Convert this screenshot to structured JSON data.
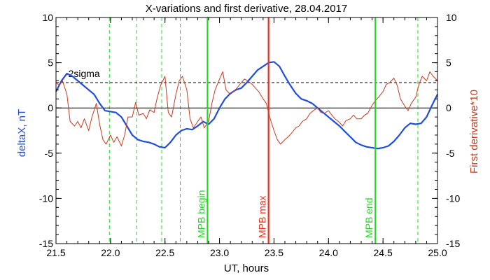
{
  "chart_data": {
    "type": "line",
    "title": "X-variations and first derivative, 28.04.2017",
    "xlabel": "UT, hours",
    "ylabel_left": "deltaX, nT",
    "ylabel_right": "First derivative*10",
    "xlim": [
      21.5,
      25.0
    ],
    "ylim_left": [
      -15,
      10
    ],
    "ylim_right": [
      -15,
      10
    ],
    "x_ticks": [
      21.5,
      22.0,
      22.5,
      23.0,
      23.5,
      24.0,
      24.5,
      25.0
    ],
    "x_tick_labels": [
      "21.5",
      "22.0",
      "22.5",
      "23.0",
      "23.5",
      "24.0",
      "24.5",
      "25.0"
    ],
    "y_ticks_left": [
      10,
      5,
      0,
      -5,
      -10,
      -15
    ],
    "y_tick_labels_left": [
      "10",
      "5",
      "0",
      "-5",
      "-10",
      "-15"
    ],
    "y_ticks_right": [
      10,
      5,
      0,
      -5,
      -10,
      -15
    ],
    "y_tick_labels_right": [
      "10",
      "5",
      "0",
      "-5",
      "-10",
      "-15"
    ],
    "colors": {
      "deltaX": "#1f4fd8",
      "derivative": "#c83a1e",
      "mpb": "#1cdc1c",
      "max": "#e8321e",
      "axis": "#000000"
    },
    "sigma_line": {
      "y": 2.8,
      "label": "2sigma"
    },
    "zero_line": {
      "y": 0
    },
    "dashed_vlines": [
      21.99,
      22.24,
      22.47,
      22.64,
      24.82
    ],
    "markers": [
      {
        "x": 22.89,
        "label": "MPB begin",
        "kind": "mpb"
      },
      {
        "x": 23.45,
        "label": "MPB max",
        "kind": "max"
      },
      {
        "x": 24.43,
        "label": "MPB end",
        "kind": "mpb"
      }
    ],
    "series": [
      {
        "key": "deltaX",
        "axis": "left",
        "x": [
          21.5,
          21.55,
          21.6,
          21.65,
          21.7,
          21.75,
          21.8,
          21.85,
          21.9,
          21.95,
          22.0,
          22.05,
          22.1,
          22.15,
          22.2,
          22.25,
          22.3,
          22.35,
          22.4,
          22.45,
          22.5,
          22.55,
          22.6,
          22.65,
          22.7,
          22.75,
          22.8,
          22.85,
          22.9,
          22.95,
          23.0,
          23.05,
          23.1,
          23.15,
          23.2,
          23.25,
          23.3,
          23.35,
          23.4,
          23.45,
          23.5,
          23.55,
          23.6,
          23.65,
          23.7,
          23.75,
          23.8,
          23.85,
          23.9,
          23.95,
          24.0,
          24.05,
          24.1,
          24.15,
          24.2,
          24.25,
          24.3,
          24.35,
          24.4,
          24.45,
          24.5,
          24.55,
          24.6,
          24.65,
          24.7,
          24.75,
          24.8,
          24.85,
          24.9,
          24.95,
          25.0
        ],
        "y": [
          1.8,
          3.0,
          3.8,
          3.5,
          3.0,
          2.5,
          2.0,
          1.5,
          0.5,
          -0.3,
          -0.4,
          -0.5,
          -1.0,
          -2.0,
          -3.0,
          -3.5,
          -3.7,
          -3.8,
          -4.0,
          -4.3,
          -4.4,
          -3.8,
          -3.0,
          -2.5,
          -2.3,
          -2.4,
          -2.0,
          -1.5,
          -1.8,
          -1.2,
          0.0,
          1.0,
          1.6,
          2.0,
          2.2,
          2.8,
          3.5,
          4.2,
          4.6,
          5.0,
          5.1,
          4.6,
          3.5,
          2.5,
          1.6,
          1.0,
          0.8,
          0.5,
          0.0,
          -0.5,
          -1.0,
          -1.5,
          -2.0,
          -2.6,
          -3.2,
          -3.8,
          -4.1,
          -4.3,
          -4.4,
          -4.5,
          -4.4,
          -4.2,
          -3.7,
          -3.0,
          -2.2,
          -1.7,
          -1.8,
          -1.7,
          -1.0,
          0.3,
          1.5
        ]
      },
      {
        "key": "derivative",
        "axis": "right",
        "x": [
          21.5,
          21.53,
          21.56,
          21.6,
          21.63,
          21.67,
          21.7,
          21.73,
          21.76,
          21.8,
          21.83,
          21.87,
          21.9,
          21.93,
          21.96,
          22.0,
          22.03,
          22.06,
          22.1,
          22.13,
          22.16,
          22.2,
          22.23,
          22.26,
          22.3,
          22.33,
          22.36,
          22.4,
          22.43,
          22.46,
          22.5,
          22.53,
          22.56,
          22.6,
          22.63,
          22.66,
          22.7,
          22.73,
          22.76,
          22.8,
          22.83,
          22.86,
          22.9,
          22.93,
          22.96,
          23.0,
          23.03,
          23.06,
          23.1,
          23.13,
          23.16,
          23.2,
          23.23,
          23.26,
          23.3,
          23.33,
          23.36,
          23.4,
          23.43,
          23.46,
          23.5,
          23.53,
          23.56,
          23.6,
          23.63,
          23.66,
          23.7,
          23.73,
          23.76,
          23.8,
          23.83,
          23.86,
          23.9,
          23.93,
          23.96,
          24.0,
          24.03,
          24.06,
          24.1,
          24.13,
          24.16,
          24.2,
          24.23,
          24.26,
          24.3,
          24.33,
          24.36,
          24.4,
          24.43,
          24.46,
          24.5,
          24.53,
          24.56,
          24.6,
          24.63,
          24.66,
          24.7,
          24.73,
          24.76,
          24.8,
          24.83,
          24.86,
          24.9,
          24.93,
          24.96,
          25.0
        ],
        "y": [
          2.8,
          2.5,
          3.0,
          1.5,
          -1.5,
          -2.0,
          -1.5,
          -2.2,
          -1.2,
          -2.5,
          -1.0,
          0.5,
          -1.8,
          -3.5,
          -4.0,
          -3.0,
          -3.8,
          -3.2,
          -4.2,
          -3.0,
          -1.0,
          -1.0,
          0.6,
          -0.8,
          -0.6,
          -1.2,
          -0.2,
          -0.5,
          1.2,
          2.5,
          3.5,
          -0.5,
          -1.0,
          1.5,
          3.0,
          3.5,
          2.0,
          -1.2,
          -2.2,
          -1.5,
          -1.0,
          -2.2,
          -1.5,
          0.5,
          2.0,
          3.2,
          4.0,
          2.0,
          1.5,
          1.8,
          2.2,
          2.8,
          3.2,
          3.0,
          2.6,
          2.2,
          1.8,
          1.0,
          0.5,
          -1.0,
          -2.5,
          -3.5,
          -4.0,
          -3.5,
          -3.2,
          -2.8,
          -2.2,
          -2.0,
          -1.5,
          -1.2,
          -0.6,
          -0.3,
          0.0,
          -0.5,
          -0.6,
          -0.3,
          -0.8,
          -1.2,
          -1.6,
          -2.0,
          -1.4,
          -1.2,
          -0.8,
          -1.2,
          -1.2,
          -0.8,
          -0.6,
          0.3,
          0.8,
          1.2,
          1.8,
          2.6,
          2.8,
          3.3,
          2.5,
          1.0,
          0.2,
          -0.3,
          0.5,
          1.2,
          2.6,
          3.5,
          3.0,
          4.0,
          3.5,
          3.0
        ]
      }
    ]
  }
}
